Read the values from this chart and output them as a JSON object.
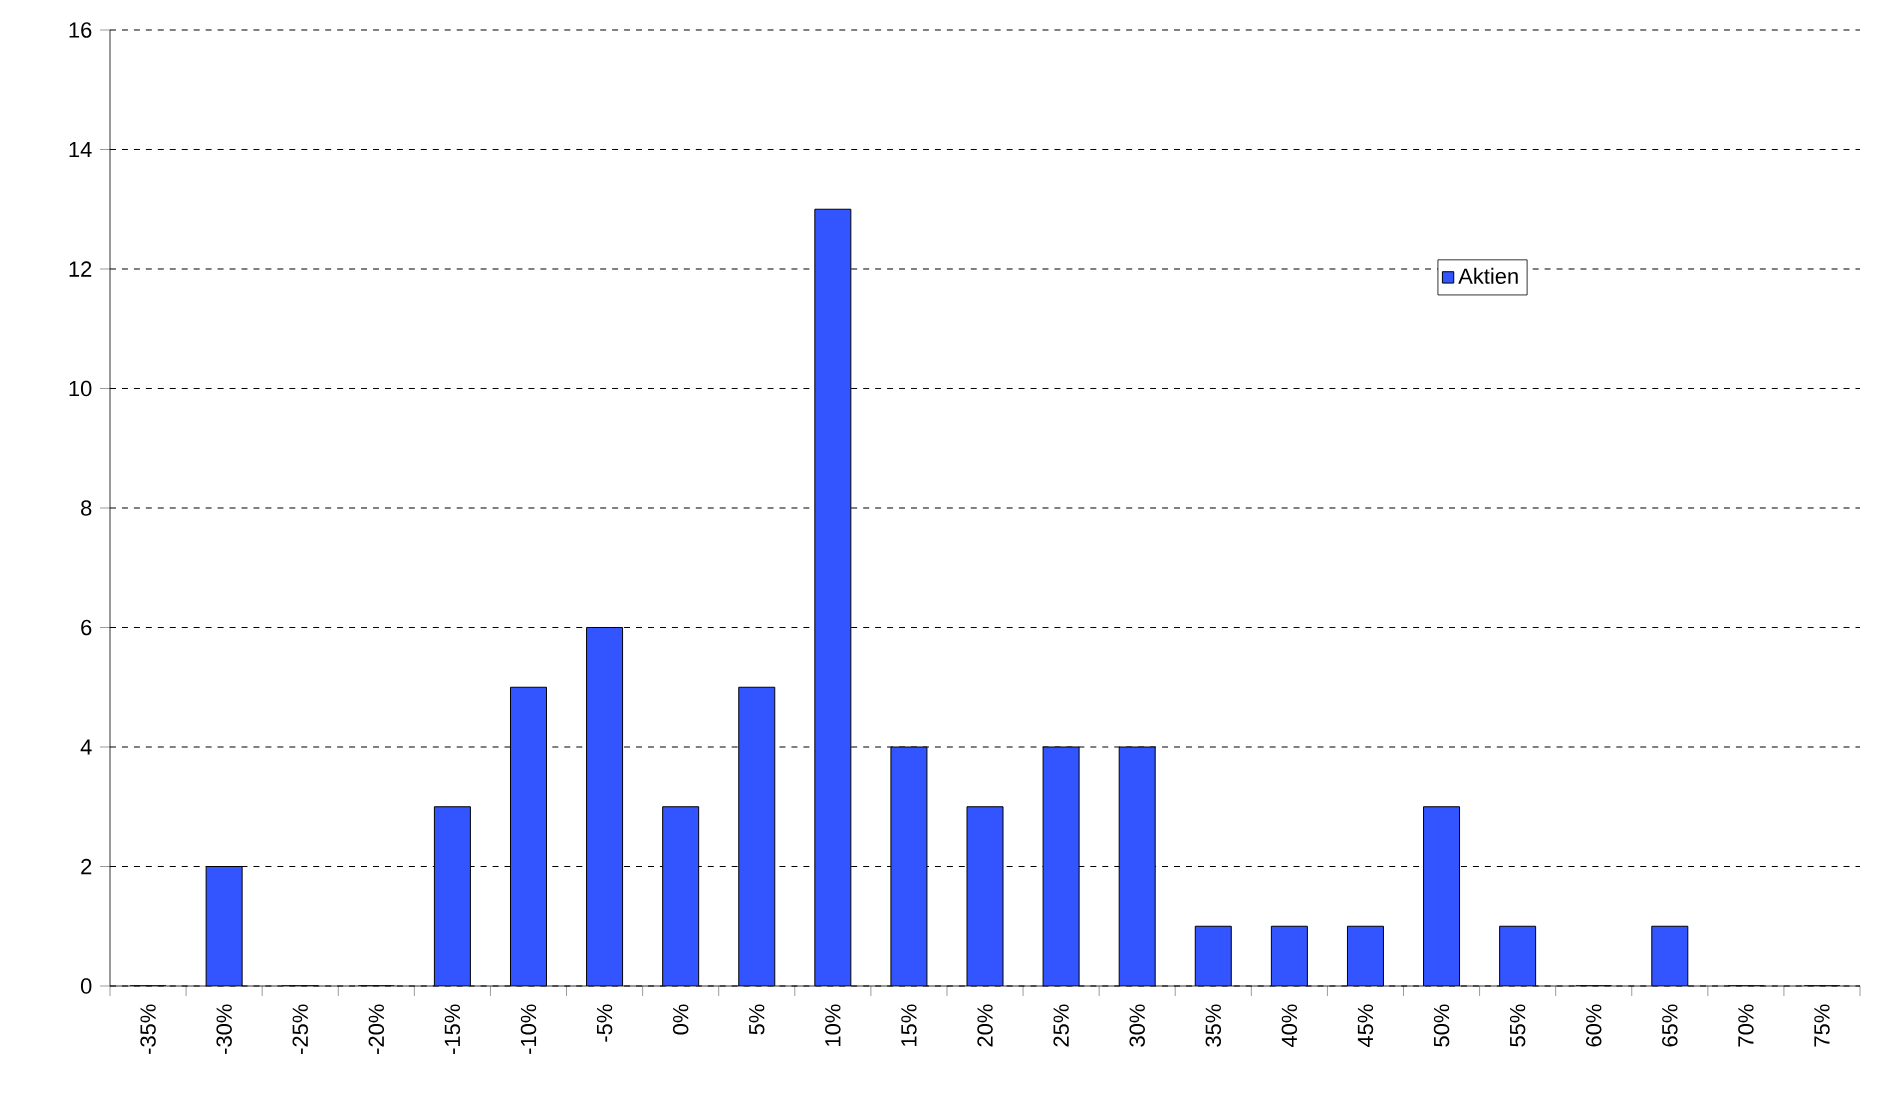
{
  "chart_data": {
    "type": "bar",
    "categories": [
      "-35%",
      "-30%",
      "-25%",
      "-20%",
      "-15%",
      "-10%",
      "-5%",
      "0%",
      "5%",
      "10%",
      "15%",
      "20%",
      "25%",
      "30%",
      "35%",
      "40%",
      "45%",
      "50%",
      "55%",
      "60%",
      "65%",
      "70%",
      "75%"
    ],
    "series": [
      {
        "name": "Aktien",
        "color": "#3355ff",
        "values": [
          0,
          2,
          0,
          0,
          3,
          5,
          6,
          3,
          5,
          13,
          4,
          3,
          4,
          4,
          1,
          1,
          1,
          3,
          1,
          0,
          1,
          0,
          0
        ]
      }
    ],
    "ylim": [
      0,
      16
    ],
    "yticks": [
      0,
      2,
      4,
      6,
      8,
      10,
      12,
      14,
      16
    ],
    "grid": "y",
    "legend": "top right"
  }
}
